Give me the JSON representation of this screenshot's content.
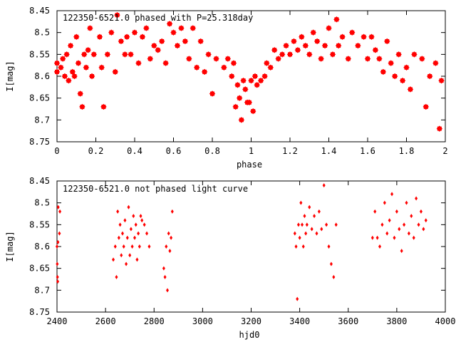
{
  "colors": {
    "series": "#ff0000",
    "frame": "#000000",
    "background": "#ffffff"
  },
  "chart_data": [
    {
      "type": "scatter",
      "title": "122350-6521.0 phased with P=25.318day",
      "xlabel": "phase",
      "ylabel": "I[mag]",
      "xlim": [
        0,
        2
      ],
      "ylim": [
        8.45,
        8.75
      ],
      "y_inverted": true,
      "marker": "filled-star",
      "xticks": [
        "0",
        "0.2",
        "0.4",
        "0.6",
        "0.8",
        "1",
        "1.2",
        "1.4",
        "1.6",
        "1.8",
        "2"
      ],
      "yticks": [
        "8.45",
        "8.5",
        "8.55",
        "8.6",
        "8.65",
        "8.7",
        "8.75"
      ],
      "series": [
        {
          "x": [
            0.0,
            0.0,
            0.02,
            0.03,
            0.04,
            0.05,
            0.06,
            0.07,
            0.08,
            0.09,
            0.1,
            0.11,
            0.12,
            0.13,
            0.14,
            0.15,
            0.16,
            0.17,
            0.18,
            0.19,
            0.22,
            0.23,
            0.24,
            0.26,
            0.28,
            0.3,
            0.31,
            0.33,
            0.35,
            0.36,
            0.38,
            0.4,
            0.42,
            0.44,
            0.46,
            0.48,
            0.5,
            0.52,
            0.54,
            0.56,
            0.58,
            0.6,
            0.62,
            0.64,
            0.66,
            0.68,
            0.7,
            0.72,
            0.74,
            0.76,
            0.78,
            0.8,
            0.82,
            0.86,
            0.88,
            0.9,
            0.91,
            0.92,
            0.93,
            0.94,
            0.95,
            0.96,
            0.97,
            0.98,
            0.99,
            1.0,
            1.01,
            1.02,
            1.03,
            1.05,
            1.07,
            1.08,
            1.1,
            1.12,
            1.14,
            1.16,
            1.18,
            1.2,
            1.22,
            1.24,
            1.26,
            1.28,
            1.3,
            1.32,
            1.34,
            1.36,
            1.38,
            1.4,
            1.42,
            1.44,
            1.45,
            1.47,
            1.5,
            1.52,
            1.55,
            1.58,
            1.6,
            1.62,
            1.64,
            1.66,
            1.68,
            1.7,
            1.72,
            1.74,
            1.76,
            1.78,
            1.8,
            1.82,
            1.84,
            1.88,
            1.9,
            1.92,
            1.95,
            1.97,
            1.98
          ],
          "y": [
            8.57,
            8.59,
            8.58,
            8.56,
            8.6,
            8.55,
            8.61,
            8.53,
            8.59,
            8.6,
            8.51,
            8.57,
            8.64,
            8.67,
            8.55,
            8.58,
            8.54,
            8.49,
            8.6,
            8.55,
            8.51,
            8.58,
            8.67,
            8.55,
            8.5,
            8.59,
            8.46,
            8.52,
            8.55,
            8.51,
            8.55,
            8.5,
            8.57,
            8.51,
            8.49,
            8.56,
            8.53,
            8.54,
            8.52,
            8.57,
            8.48,
            8.5,
            8.53,
            8.49,
            8.52,
            8.56,
            8.49,
            8.58,
            8.52,
            8.59,
            8.55,
            8.64,
            8.56,
            8.58,
            8.56,
            8.6,
            8.57,
            8.67,
            8.62,
            8.65,
            8.7,
            8.61,
            8.63,
            8.66,
            8.66,
            8.61,
            8.68,
            8.6,
            8.62,
            8.61,
            8.6,
            8.57,
            8.58,
            8.54,
            8.56,
            8.55,
            8.53,
            8.55,
            8.52,
            8.54,
            8.51,
            8.53,
            8.55,
            8.5,
            8.52,
            8.56,
            8.53,
            8.49,
            8.55,
            8.47,
            8.53,
            8.51,
            8.56,
            8.5,
            8.53,
            8.51,
            8.56,
            8.51,
            8.54,
            8.56,
            8.59,
            8.52,
            8.57,
            8.6,
            8.55,
            8.61,
            8.58,
            8.63,
            8.55,
            8.56,
            8.67,
            8.6,
            8.57,
            8.72,
            8.61
          ]
        }
      ]
    },
    {
      "type": "scatter",
      "title": "122350-6521.0 not phased light curve",
      "xlabel": "hjd0",
      "ylabel": "I[mag]",
      "xlim": [
        2400,
        4000
      ],
      "ylim": [
        8.45,
        8.75
      ],
      "y_inverted": true,
      "marker": "small-diamond",
      "xticks": [
        "2400",
        "2600",
        "2800",
        "3000",
        "3200",
        "3400",
        "3600",
        "3800",
        "4000"
      ],
      "yticks": [
        "8.45",
        "8.5",
        "8.55",
        "8.6",
        "8.65",
        "8.7",
        "8.75"
      ],
      "series": [
        {
          "x": [
            2400,
            2401,
            2402,
            2403,
            2404,
            2405,
            2410,
            2412,
            2632,
            2640,
            2645,
            2650,
            2655,
            2660,
            2665,
            2670,
            2675,
            2680,
            2685,
            2690,
            2695,
            2700,
            2705,
            2710,
            2715,
            2720,
            2725,
            2730,
            2735,
            2740,
            2745,
            2750,
            2760,
            2770,
            2780,
            2840,
            2845,
            2850,
            2855,
            2860,
            2865,
            2870,
            2875,
            3380,
            3385,
            3390,
            3395,
            3400,
            3405,
            3410,
            3415,
            3420,
            3425,
            3430,
            3440,
            3450,
            3460,
            3470,
            3480,
            3490,
            3500,
            3510,
            3520,
            3530,
            3540,
            3550,
            3700,
            3710,
            3720,
            3730,
            3740,
            3750,
            3760,
            3770,
            3780,
            3790,
            3800,
            3810,
            3820,
            3830,
            3840,
            3850,
            3860,
            3870,
            3880,
            3890,
            3900,
            3910,
            3920
          ],
          "y": [
            8.6,
            8.64,
            8.67,
            8.68,
            8.59,
            8.51,
            8.57,
            8.52,
            8.63,
            8.6,
            8.67,
            8.52,
            8.58,
            8.55,
            8.62,
            8.57,
            8.6,
            8.54,
            8.64,
            8.58,
            8.51,
            8.62,
            8.56,
            8.6,
            8.53,
            8.58,
            8.55,
            8.63,
            8.57,
            8.6,
            8.53,
            8.54,
            8.55,
            8.57,
            8.6,
            8.65,
            8.67,
            8.6,
            8.7,
            8.57,
            8.61,
            8.58,
            8.52,
            8.57,
            8.6,
            8.72,
            8.55,
            8.58,
            8.5,
            8.55,
            8.6,
            8.53,
            8.57,
            8.55,
            8.51,
            8.56,
            8.53,
            8.57,
            8.52,
            8.56,
            8.46,
            8.55,
            8.6,
            8.64,
            8.67,
            8.55,
            8.58,
            8.52,
            8.58,
            8.6,
            8.55,
            8.5,
            8.57,
            8.54,
            8.48,
            8.58,
            8.52,
            8.56,
            8.61,
            8.55,
            8.5,
            8.57,
            8.53,
            8.58,
            8.49,
            8.55,
            8.52,
            8.56,
            8.54
          ]
        }
      ]
    }
  ]
}
